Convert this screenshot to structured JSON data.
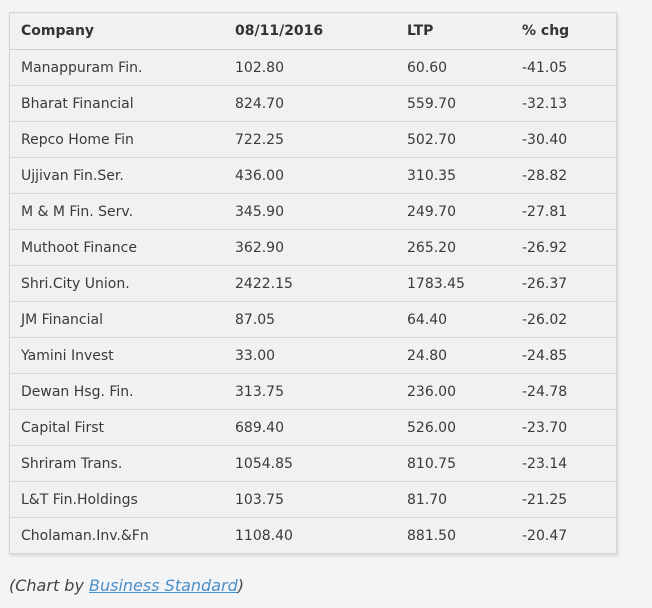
{
  "chart_data": {
    "type": "table",
    "columns": [
      "Company",
      "08/11/2016",
      "LTP",
      "% chg"
    ],
    "rows": [
      [
        "Manappuram Fin.",
        "102.80",
        "60.60",
        "-41.05"
      ],
      [
        "Bharat Financial",
        "824.70",
        "559.70",
        "-32.13"
      ],
      [
        "Repco Home Fin",
        "722.25",
        "502.70",
        "-30.40"
      ],
      [
        "Ujjivan Fin.Ser.",
        "436.00",
        "310.35",
        "-28.82"
      ],
      [
        "M & M Fin. Serv.",
        "345.90",
        "249.70",
        "-27.81"
      ],
      [
        "Muthoot Finance",
        "362.90",
        "265.20",
        "-26.92"
      ],
      [
        "Shri.City Union.",
        "2422.15",
        "1783.45",
        "-26.37"
      ],
      [
        "JM Financial",
        "87.05",
        "64.40",
        "-26.02"
      ],
      [
        "Yamini Invest",
        "33.00",
        "24.80",
        "-24.85"
      ],
      [
        "Dewan Hsg. Fin.",
        "313.75",
        "236.00",
        "-24.78"
      ],
      [
        "Capital First",
        "689.40",
        "526.00",
        "-23.70"
      ],
      [
        "Shriram Trans.",
        "1054.85",
        "810.75",
        "-23.14"
      ],
      [
        "L&T Fin.Holdings",
        "103.75",
        "81.70",
        "-21.25"
      ],
      [
        "Cholaman.Inv.&Fn",
        "1108.40",
        "881.50",
        "-20.47"
      ]
    ]
  },
  "credit": {
    "prefix": "(Chart by ",
    "link_text": "Business Standard",
    "suffix": ")"
  },
  "colors": {
    "background": "#f3f4f6",
    "table_bg": "#f1f1f1",
    "link": "#4a8fc9"
  }
}
